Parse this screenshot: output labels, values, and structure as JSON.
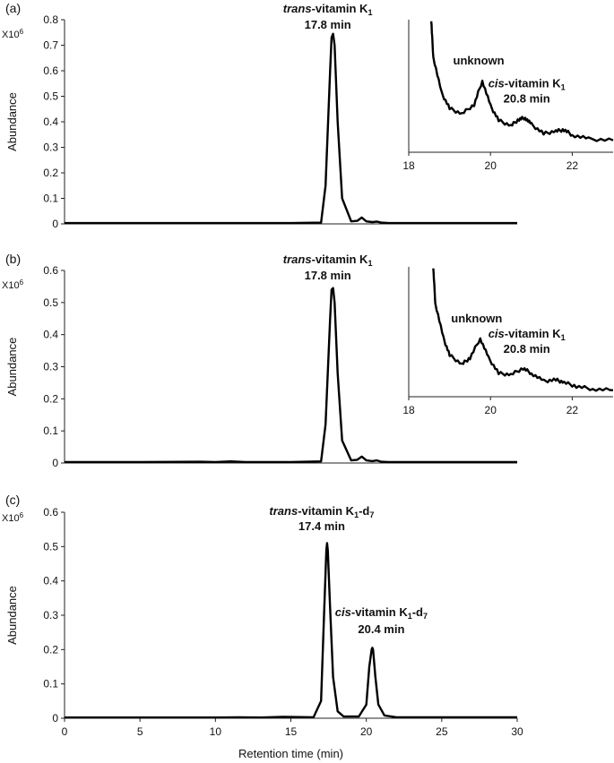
{
  "chart_data": [
    {
      "type": "line",
      "panel_label": "(a)",
      "ylabel": "Abundance",
      "y_multiplier": "X10",
      "y_multiplier_exp": "6",
      "xlim": [
        0,
        30
      ],
      "ylim": [
        0,
        0.8
      ],
      "yticks": [
        "0",
        "0.1",
        "0.2",
        "0.3",
        "0.4",
        "0.5",
        "0.6",
        "0.7",
        "0.8"
      ],
      "xticks": [],
      "xlabel": "",
      "grid": false,
      "series": [
        {
          "x": [
            0,
            5,
            10,
            15,
            17.0,
            17.3,
            17.6,
            17.7,
            17.8,
            17.9,
            18.1,
            18.4,
            19.0,
            19.4,
            19.7,
            20.0,
            20.4,
            20.7,
            21.0,
            21.5,
            30
          ],
          "y": [
            0.003,
            0.003,
            0.003,
            0.003,
            0.005,
            0.15,
            0.6,
            0.73,
            0.745,
            0.7,
            0.4,
            0.1,
            0.01,
            0.012,
            0.025,
            0.01,
            0.007,
            0.009,
            0.005,
            0.003,
            0.003
          ]
        }
      ],
      "annotations": [
        {
          "prefix": "trans",
          "text": "-vitamin K",
          "sub": "1",
          "suffix": "",
          "line2": "17.8 min",
          "x": 17.8,
          "y": 0.745
        }
      ],
      "inset": {
        "xlim": [
          18,
          23
        ],
        "xticks": [
          "18",
          "20",
          "22"
        ],
        "x": [
          18.55,
          18.6,
          18.8,
          19.0,
          19.3,
          19.6,
          19.8,
          20.0,
          20.2,
          20.5,
          20.7,
          20.85,
          21.0,
          21.3,
          21.6,
          21.8,
          22.0,
          22.4,
          23
        ],
        "y": [
          1.0,
          0.72,
          0.45,
          0.33,
          0.29,
          0.36,
          0.54,
          0.35,
          0.24,
          0.2,
          0.25,
          0.26,
          0.21,
          0.14,
          0.16,
          0.17,
          0.13,
          0.1,
          0.09
        ],
        "labels": [
          {
            "text": "unknown",
            "x": 19.8,
            "y": 0.54
          },
          {
            "prefix": "cis",
            "text": "-vitamin K",
            "sub": "1",
            "suffix": "",
            "line2": "20.8 min",
            "x": 20.8,
            "y": 0.26
          }
        ]
      }
    },
    {
      "type": "line",
      "panel_label": "(b)",
      "ylabel": "Abundance",
      "y_multiplier": "X10",
      "y_multiplier_exp": "6",
      "xlim": [
        0,
        30
      ],
      "ylim": [
        0,
        0.6
      ],
      "yticks": [
        "0",
        "0.1",
        "0.2",
        "0.3",
        "0.4",
        "0.5",
        "0.6"
      ],
      "xticks": [],
      "xlabel": "",
      "grid": false,
      "series": [
        {
          "x": [
            0,
            5,
            9,
            10,
            11,
            12,
            15,
            17.0,
            17.3,
            17.6,
            17.7,
            17.8,
            17.9,
            18.1,
            18.4,
            19.0,
            19.4,
            19.7,
            20.0,
            20.4,
            20.7,
            21.0,
            21.5,
            30
          ],
          "y": [
            0.003,
            0.003,
            0.004,
            0.003,
            0.005,
            0.003,
            0.003,
            0.005,
            0.12,
            0.45,
            0.54,
            0.545,
            0.5,
            0.28,
            0.07,
            0.008,
            0.01,
            0.02,
            0.008,
            0.006,
            0.008,
            0.004,
            0.003,
            0.003
          ]
        }
      ],
      "annotations": [
        {
          "prefix": "trans",
          "text": "-vitamin K",
          "sub": "1",
          "suffix": "",
          "line2": "17.8 min",
          "x": 17.8,
          "y": 0.545
        }
      ],
      "inset": {
        "xlim": [
          18,
          23
        ],
        "xticks": [
          "18",
          "20",
          "22"
        ],
        "x": [
          18.6,
          18.65,
          18.85,
          19.0,
          19.3,
          19.5,
          19.75,
          19.95,
          20.2,
          20.5,
          20.8,
          21.0,
          21.3,
          21.6,
          21.8,
          22.1,
          22.5,
          23
        ],
        "y": [
          1.0,
          0.72,
          0.45,
          0.32,
          0.25,
          0.3,
          0.45,
          0.3,
          0.18,
          0.17,
          0.22,
          0.18,
          0.12,
          0.13,
          0.11,
          0.08,
          0.06,
          0.05
        ],
        "labels": [
          {
            "text": "unknown",
            "x": 19.75,
            "y": 0.45
          },
          {
            "prefix": "cis",
            "text": "-vitamin K",
            "sub": "1",
            "suffix": "",
            "line2": "20.8 min",
            "x": 20.8,
            "y": 0.22
          }
        ]
      }
    },
    {
      "type": "line",
      "panel_label": "(c)",
      "ylabel": "Abundance",
      "y_multiplier": "X10",
      "y_multiplier_exp": "6",
      "xlim": [
        0,
        30
      ],
      "ylim": [
        0,
        0.6
      ],
      "yticks": [
        "0",
        "0.1",
        "0.2",
        "0.3",
        "0.4",
        "0.5",
        "0.6"
      ],
      "xticks": [
        "0",
        "5",
        "10",
        "15",
        "20",
        "25",
        "30"
      ],
      "xlabel": "Retention time (min)",
      "grid": false,
      "series": [
        {
          "x": [
            0,
            5,
            10,
            11.5,
            13,
            14.5,
            16.5,
            17.0,
            17.2,
            17.35,
            17.4,
            17.45,
            17.6,
            17.8,
            18.1,
            18.5,
            19.5,
            20.0,
            20.2,
            20.35,
            20.4,
            20.45,
            20.6,
            20.8,
            21.2,
            22,
            30
          ],
          "y": [
            0.002,
            0.002,
            0.002,
            0.003,
            0.002,
            0.004,
            0.003,
            0.05,
            0.3,
            0.49,
            0.51,
            0.49,
            0.32,
            0.12,
            0.02,
            0.005,
            0.005,
            0.04,
            0.15,
            0.2,
            0.205,
            0.2,
            0.12,
            0.04,
            0.008,
            0.003,
            0.003
          ]
        }
      ],
      "annotations": [
        {
          "prefix": "trans",
          "text": "-vitamin K",
          "sub": "1",
          "suffix": "-d",
          "sub2": "7",
          "line2": "17.4 min",
          "x": 17.4,
          "y": 0.51
        },
        {
          "prefix": "cis",
          "text": "-vitamin K",
          "sub": "1",
          "suffix": "-d",
          "sub2": "7",
          "line2": "20.4 min",
          "x": 20.4,
          "y": 0.205
        }
      ]
    }
  ]
}
